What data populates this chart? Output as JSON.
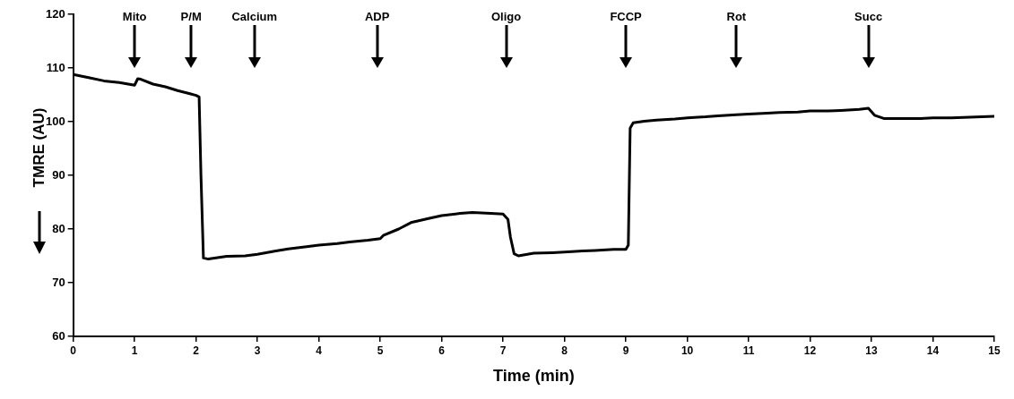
{
  "chart_data": {
    "type": "line",
    "xlabel": "Time (min)",
    "ylabel": "TMRE (AU)",
    "x": [
      0,
      0.25,
      0.5,
      0.75,
      1.0,
      1.05,
      1.1,
      1.3,
      1.5,
      1.7,
      1.9,
      2.0,
      2.05,
      2.08,
      2.12,
      2.2,
      2.5,
      2.8,
      3.0,
      3.3,
      3.5,
      3.8,
      4.0,
      4.3,
      4.5,
      4.8,
      5.0,
      5.05,
      5.3,
      5.5,
      5.8,
      6.0,
      6.3,
      6.5,
      6.8,
      7.0,
      7.08,
      7.12,
      7.18,
      7.25,
      7.5,
      7.8,
      8.0,
      8.3,
      8.5,
      8.8,
      9.0,
      9.04,
      9.07,
      9.12,
      9.3,
      9.5,
      9.8,
      10.0,
      10.3,
      10.5,
      10.8,
      11.0,
      11.3,
      11.5,
      11.8,
      12.0,
      12.3,
      12.5,
      12.8,
      12.95,
      13.05,
      13.2,
      13.5,
      13.8,
      14.0,
      14.3,
      14.5,
      14.8,
      15.0
    ],
    "series": [
      {
        "color": "#000000",
        "values": [
          108.8,
          108.2,
          107.6,
          107.3,
          106.8,
          108.0,
          107.9,
          107.0,
          106.5,
          105.8,
          105.2,
          104.9,
          104.6,
          90,
          74.6,
          74.4,
          74.9,
          75.0,
          75.3,
          75.9,
          76.3,
          76.7,
          77.0,
          77.3,
          77.6,
          77.9,
          78.2,
          78.8,
          80.0,
          81.2,
          82.0,
          82.5,
          82.9,
          83.1,
          82.9,
          82.8,
          81.8,
          78.5,
          75.4,
          75.0,
          75.5,
          75.6,
          75.7,
          75.9,
          76.0,
          76.2,
          76.2,
          77.0,
          98.8,
          99.8,
          100.1,
          100.3,
          100.5,
          100.7,
          100.9,
          101.1,
          101.3,
          101.4,
          101.6,
          101.7,
          101.8,
          102.0,
          102.0,
          102.1,
          102.3,
          102.5,
          101.2,
          100.6,
          100.6,
          100.6,
          100.7,
          100.7,
          100.8,
          100.9,
          101.0
        ]
      }
    ],
    "xlim": [
      0,
      15
    ],
    "xticks": [
      0,
      1,
      2,
      3,
      4,
      5,
      6,
      7,
      8,
      9,
      10,
      11,
      12,
      13,
      14,
      15
    ],
    "ylim": [
      60,
      120
    ],
    "yticks": [
      60,
      70,
      80,
      90,
      100,
      110,
      120
    ],
    "grid": false,
    "legend": false,
    "marker": "none",
    "line_style": "solid",
    "ref_lines": [
      {
        "axis": "x",
        "value": 1,
        "label": "Mito"
      },
      {
        "axis": "x",
        "value": 1.92,
        "label": "P/M"
      },
      {
        "axis": "x",
        "value": 2.95,
        "label": "Calcium"
      },
      {
        "axis": "x",
        "value": 4.95,
        "label": "ADP"
      },
      {
        "axis": "x",
        "value": 7.05,
        "label": "Oligo"
      },
      {
        "axis": "x",
        "value": 9,
        "label": "FCCP"
      },
      {
        "axis": "x",
        "value": 10.8,
        "label": "Rot"
      },
      {
        "axis": "x",
        "value": 12.95,
        "label": "Succ"
      }
    ]
  }
}
